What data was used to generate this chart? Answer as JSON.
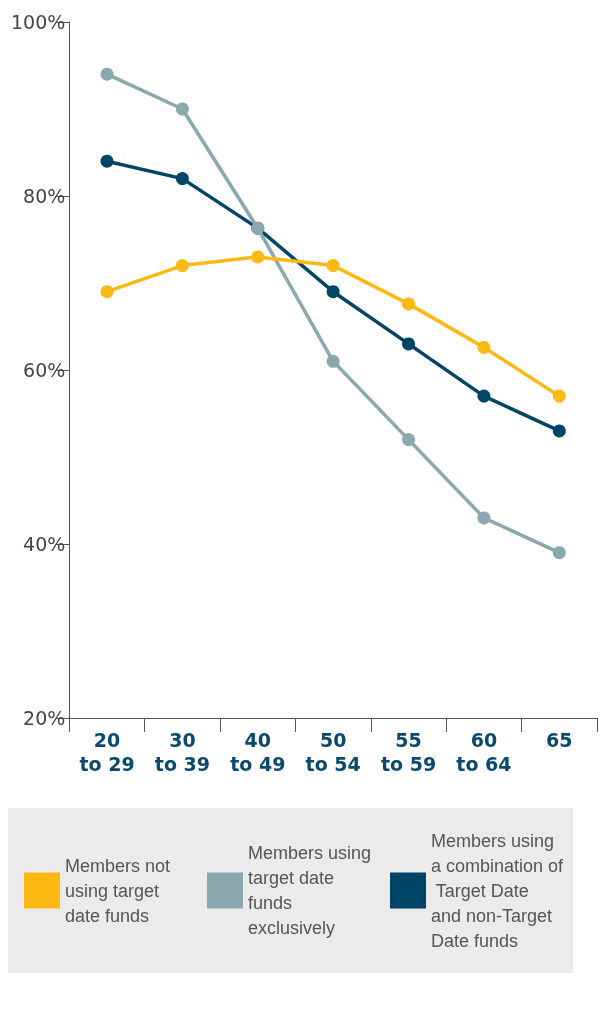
{
  "chart_data": {
    "type": "line",
    "categories": [
      "20\nto 29",
      "30\nto 39",
      "40\nto 49",
      "50\nto 54",
      "55\nto 59",
      "60\nto 64",
      "65"
    ],
    "series": [
      {
        "name": "Members not using target date funds",
        "color": "#fdb913",
        "values": [
          69,
          72,
          73,
          72,
          67.6,
          62.6,
          57
        ]
      },
      {
        "name": "Members using target date funds exclusively",
        "color": "#8aa8ae",
        "values": [
          94,
          90,
          76.3,
          61,
          52,
          43,
          39
        ]
      },
      {
        "name": "Members using a combination of Target Date and non-Target Date funds",
        "color": "#004466",
        "values": [
          84,
          82,
          76.3,
          69,
          63,
          57,
          53
        ]
      }
    ],
    "ylim": [
      20,
      100
    ],
    "yticks": [
      {
        "value": 20,
        "label": "20%"
      },
      {
        "value": 40,
        "label": "40%"
      },
      {
        "value": 60,
        "label": "60%"
      },
      {
        "value": 80,
        "label": "80%"
      },
      {
        "value": 100,
        "label": "100%"
      }
    ],
    "grid": false,
    "legend": "bottom",
    "marker": "circle",
    "line_style": "solid"
  }
}
